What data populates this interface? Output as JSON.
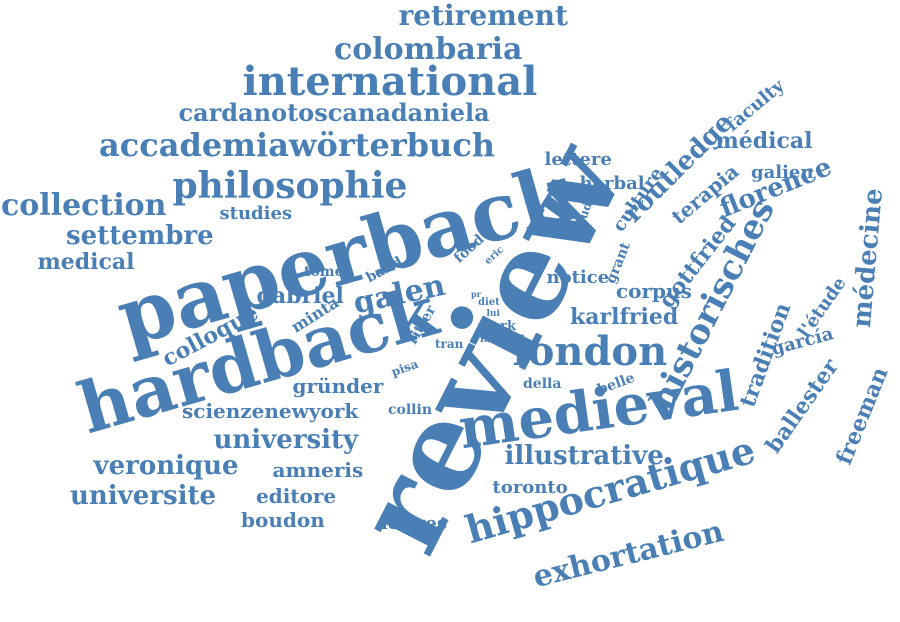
{
  "color": "#4a7fb5",
  "words": [
    "review",
    "paperback",
    "hardback",
    "medieval",
    "hippocratique",
    "historisches",
    "london",
    "international",
    "philosophie",
    "accademiawörterbuch",
    "colombaria",
    "retirement",
    "cardanotoscanadaniela",
    "collection",
    "settembre",
    "medical",
    "studies",
    "galen",
    "colloque",
    "gabriel",
    "exhortation",
    "illustrative",
    "university",
    "veronique",
    "universite",
    "amneris",
    "editore",
    "boudon",
    "lettres",
    "toronto",
    "scienzenewyork",
    "gründer",
    "collin",
    "routledge",
    "médecine",
    "freeman",
    "ballester",
    "tradition",
    "garcía",
    "l'étude",
    "florence",
    "faculty",
    "médical",
    "galien",
    "terapia",
    "culture",
    "gottfried",
    "corpus",
    "karlfried",
    "notice",
    "grant",
    "herbal",
    "lettere",
    "band",
    "tome",
    "minta",
    "food",
    "eric",
    "ivan",
    "studi",
    "ritter",
    "diet",
    "pr",
    "lui",
    "mark",
    "fail",
    "tran",
    "pisa",
    "della",
    "belle"
  ]
}
